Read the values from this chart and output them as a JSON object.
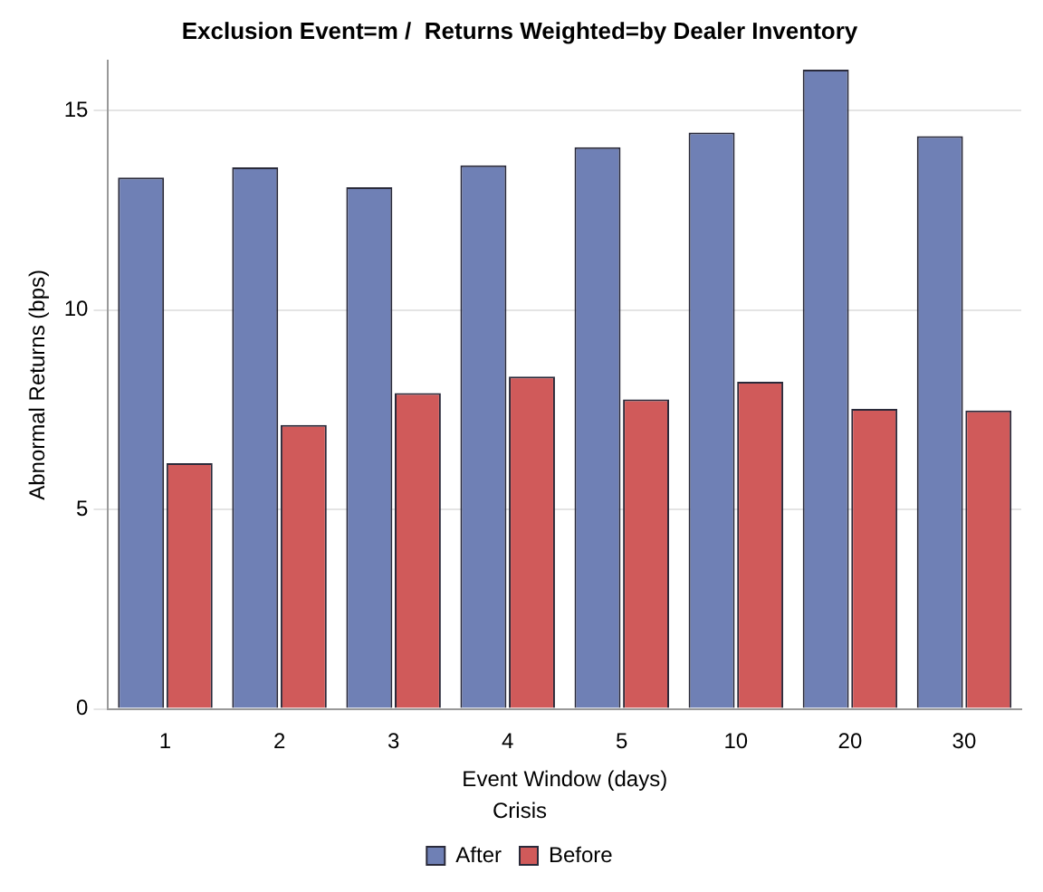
{
  "chart_data": {
    "type": "bar",
    "title": "Exclusion Event=m /  Returns Weighted=by Dealer Inventory",
    "xlabel": "Event Window (days)",
    "ylabel": "Abnormal Returns (bps)",
    "legend_title": "Crisis",
    "categories": [
      "1",
      "2",
      "3",
      "4",
      "5",
      "10",
      "20",
      "30"
    ],
    "series": [
      {
        "name": "After",
        "color": "#6f80b5",
        "values": [
          13.32,
          13.58,
          13.08,
          13.63,
          14.08,
          14.45,
          16.03,
          14.36
        ]
      },
      {
        "name": "Before",
        "color": "#d05a5a",
        "values": [
          6.16,
          7.12,
          7.92,
          8.33,
          7.76,
          8.2,
          7.52,
          7.48
        ]
      }
    ],
    "ylim": [
      0,
      16.25
    ],
    "yticks": [
      0,
      5,
      10,
      15
    ],
    "grid": "y",
    "legend": "bottom"
  }
}
